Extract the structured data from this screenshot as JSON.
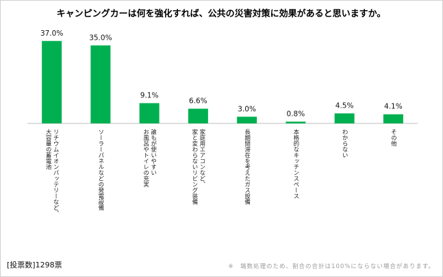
{
  "chart_data": {
    "type": "bar",
    "title": "キャンピングカーは何を強化すれば、公共の災害対策に効果があると思いますか。",
    "categories": [
      [
        "リチウムイオンバッテリーなど、",
        "大容量の蓄電池"
      ],
      [
        "ソーラーパネルなどの発電設備"
      ],
      [
        "誰もが使いやすい",
        "お風呂やトイレの充実"
      ],
      [
        "家庭用エアコンなど、",
        "家と変わらないリビング装備"
      ],
      [
        "長期間滞在を考えたガス設備"
      ],
      [
        "本格的なキッチンスペース"
      ],
      [
        "わからない"
      ],
      [
        "その他"
      ]
    ],
    "values": [
      37.0,
      35.0,
      9.1,
      6.6,
      3.0,
      0.8,
      4.5,
      4.1
    ],
    "value_labels": [
      "37.0%",
      "35.0%",
      "9.1%",
      "6.6%",
      "3.0%",
      "0.8%",
      "4.5%",
      "4.1%"
    ],
    "ylim": [
      0,
      40
    ],
    "bar_color": "#00b050",
    "grid": false,
    "legend": "none"
  },
  "footer": {
    "votes": "[投票数]1298票",
    "note": "※　端数処理のため、割合の合計は100%にならない場合があります。"
  }
}
